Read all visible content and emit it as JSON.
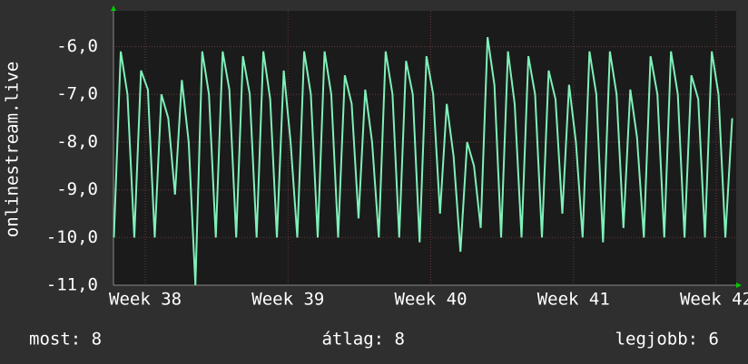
{
  "chart_data": {
    "type": "line",
    "y_label": "onlinestream.live",
    "x": [
      37.78,
      37.828,
      37.875,
      37.923,
      37.97,
      38.018,
      38.066,
      38.113,
      38.161,
      38.208,
      38.256,
      38.304,
      38.351,
      38.399,
      38.446,
      38.494,
      38.542,
      38.589,
      38.637,
      38.684,
      38.732,
      38.78,
      38.827,
      38.875,
      38.922,
      38.97,
      39.018,
      39.065,
      39.113,
      39.16,
      39.208,
      39.256,
      39.303,
      39.351,
      39.398,
      39.446,
      39.494,
      39.541,
      39.589,
      39.636,
      39.684,
      39.732,
      39.779,
      39.827,
      39.874,
      39.922,
      39.97,
      40.017,
      40.065,
      40.112,
      40.16,
      40.208,
      40.255,
      40.303,
      40.35,
      40.398,
      40.446,
      40.493,
      40.541,
      40.588,
      40.636,
      40.684,
      40.731,
      40.779,
      40.826,
      40.874,
      40.922,
      40.969,
      41.017,
      41.064,
      41.112,
      41.16,
      41.207,
      41.255,
      41.302,
      41.35,
      41.398,
      41.445,
      41.493,
      41.54,
      41.588,
      41.636,
      41.683,
      41.731,
      41.778,
      41.826,
      41.874,
      41.921,
      41.969,
      42.016,
      42.064,
      42.112
    ],
    "series": [
      {
        "name": "onlinestream.live",
        "color": "#7ff0b8",
        "values": [
          -10,
          -6.1,
          -7.0,
          -10,
          -6.5,
          -6.9,
          -10,
          -7.0,
          -7.5,
          -9.1,
          -6.7,
          -8.0,
          -11.0,
          -6.1,
          -7.0,
          -10,
          -6.1,
          -6.9,
          -10,
          -6.2,
          -7.0,
          -10,
          -6.1,
          -7.1,
          -10,
          -6.5,
          -8.0,
          -10,
          -6.1,
          -7.0,
          -10,
          -6.1,
          -7.0,
          -10,
          -6.6,
          -7.2,
          -9.6,
          -6.9,
          -8.0,
          -10,
          -6.1,
          -7.0,
          -10,
          -6.3,
          -7.0,
          -10.1,
          -6.2,
          -7.0,
          -9.5,
          -7.2,
          -8.3,
          -10.3,
          -8.0,
          -8.5,
          -9.8,
          -5.8,
          -6.8,
          -10,
          -6.1,
          -7.2,
          -10,
          -6.2,
          -7.0,
          -10,
          -6.5,
          -7.1,
          -9.5,
          -6.8,
          -8.0,
          -10,
          -6.1,
          -7.0,
          -10.1,
          -6.1,
          -7.0,
          -9.8,
          -6.9,
          -7.9,
          -10,
          -6.2,
          -7.0,
          -10,
          -6.1,
          -7.0,
          -10,
          -6.6,
          -7.1,
          -10,
          -6.1,
          -7.0,
          -10,
          -7.5
        ]
      }
    ],
    "xlim": [
      37.777,
      42.14
    ],
    "xticks": [
      {
        "value": 38,
        "label": "Week 38"
      },
      {
        "value": 39,
        "label": "Week 39"
      },
      {
        "value": 40,
        "label": "Week 40"
      },
      {
        "value": 41,
        "label": "Week 41"
      },
      {
        "value": 42,
        "label": "Week 42"
      }
    ],
    "ylim": [
      -11,
      -5.25
    ],
    "yticks": [
      {
        "value": -11,
        "label": "-11,0"
      },
      {
        "value": -10,
        "label": "-10,0"
      },
      {
        "value": -9,
        "label": "-9,0"
      },
      {
        "value": -8,
        "label": "-8,0"
      },
      {
        "value": -7,
        "label": "-7,0"
      },
      {
        "value": -6,
        "label": "-6,0"
      }
    ],
    "grid": true,
    "legend": [
      "most: 8",
      "átlag: 8",
      "legjobb: 6"
    ]
  }
}
